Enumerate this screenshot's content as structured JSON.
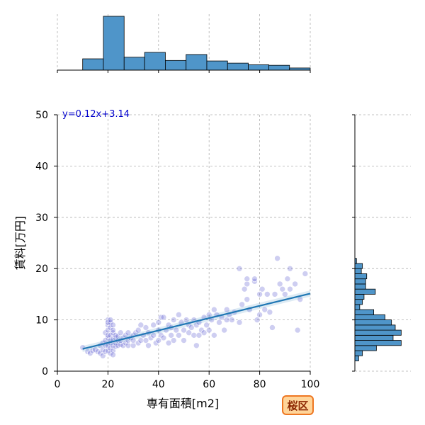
{
  "chart_data": {
    "type": "scatter",
    "xlabel": "専有面積[m2]",
    "ylabel": "賃料[万円]",
    "xlim": [
      0,
      100
    ],
    "ylim": [
      0,
      50
    ],
    "x_ticks": [
      0,
      20,
      40,
      60,
      80,
      100
    ],
    "y_ticks": [
      0,
      10,
      20,
      30,
      40,
      50
    ],
    "grid": true,
    "regression": {
      "slope": 0.12,
      "intercept": 3.14,
      "x_range": [
        10,
        100
      ],
      "label": "y=0.12x+3.14"
    },
    "badge": "桜区",
    "colors": {
      "points": "#5050cc",
      "line": "#1f77b4",
      "hist": "#4f95c9",
      "badge_fill": "#ffd59a",
      "badge_border": "#ee7722"
    },
    "points": [
      [
        10,
        4.6
      ],
      [
        12,
        3.8
      ],
      [
        13,
        3.5
      ],
      [
        14,
        4
      ],
      [
        15,
        4.2
      ],
      [
        16,
        3.8
      ],
      [
        17,
        3.5
      ],
      [
        17,
        5
      ],
      [
        18,
        4.2
      ],
      [
        18,
        5.5
      ],
      [
        18,
        3
      ],
      [
        19,
        3.8
      ],
      [
        19,
        5
      ],
      [
        19,
        6
      ],
      [
        19,
        7.5
      ],
      [
        20,
        4
      ],
      [
        20,
        5
      ],
      [
        20,
        6.5
      ],
      [
        20,
        7
      ],
      [
        20,
        8
      ],
      [
        20,
        9
      ],
      [
        20,
        10
      ],
      [
        20,
        9.5
      ],
      [
        21,
        3.5
      ],
      [
        21,
        4.5
      ],
      [
        21,
        5.5
      ],
      [
        21,
        6
      ],
      [
        21,
        7
      ],
      [
        21,
        8.5
      ],
      [
        21,
        9.5
      ],
      [
        21,
        10
      ],
      [
        22,
        4
      ],
      [
        22,
        5
      ],
      [
        22,
        6.2
      ],
      [
        22,
        7.5
      ],
      [
        22,
        8
      ],
      [
        22,
        9
      ],
      [
        22,
        3.2
      ],
      [
        23,
        4.8
      ],
      [
        23,
        5.5
      ],
      [
        23,
        6.5
      ],
      [
        23,
        7
      ],
      [
        24,
        5
      ],
      [
        24,
        6
      ],
      [
        24,
        6.8
      ],
      [
        25,
        5.2
      ],
      [
        25,
        6
      ],
      [
        25,
        7.5
      ],
      [
        26,
        5
      ],
      [
        26,
        6.5
      ],
      [
        27,
        5.5
      ],
      [
        27,
        7
      ],
      [
        28,
        5
      ],
      [
        28,
        6
      ],
      [
        28,
        7.5
      ],
      [
        29,
        6.5
      ],
      [
        30,
        5
      ],
      [
        30,
        6
      ],
      [
        30,
        7
      ],
      [
        31,
        7.5
      ],
      [
        32,
        5.5
      ],
      [
        32,
        8
      ],
      [
        33,
        6
      ],
      [
        33,
        9
      ],
      [
        34,
        7
      ],
      [
        35,
        6
      ],
      [
        35,
        8.5
      ],
      [
        36,
        7.5
      ],
      [
        36,
        5
      ],
      [
        37,
        6.5
      ],
      [
        38,
        7
      ],
      [
        38,
        9
      ],
      [
        39,
        5.5
      ],
      [
        40,
        6
      ],
      [
        40,
        8
      ],
      [
        40,
        9.5
      ],
      [
        41,
        7
      ],
      [
        41,
        10.5
      ],
      [
        42,
        6.5
      ],
      [
        42,
        10.5
      ],
      [
        43,
        8
      ],
      [
        44,
        5.5
      ],
      [
        44,
        9
      ],
      [
        45,
        7
      ],
      [
        45,
        8.5
      ],
      [
        46,
        10
      ],
      [
        46,
        6
      ],
      [
        47,
        8
      ],
      [
        48,
        7
      ],
      [
        48,
        11
      ],
      [
        49,
        9.5
      ],
      [
        50,
        8
      ],
      [
        50,
        6
      ],
      [
        51,
        10
      ],
      [
        52,
        7.5
      ],
      [
        52,
        9
      ],
      [
        53,
        8.5
      ],
      [
        54,
        7
      ],
      [
        54,
        10
      ],
      [
        55,
        5
      ],
      [
        55,
        9
      ],
      [
        56,
        9.5
      ],
      [
        56,
        7
      ],
      [
        57,
        8
      ],
      [
        58,
        10.5
      ],
      [
        58,
        7.5
      ],
      [
        59,
        9
      ],
      [
        60,
        8
      ],
      [
        60,
        11
      ],
      [
        61,
        10
      ],
      [
        62,
        12
      ],
      [
        62,
        7
      ],
      [
        63,
        11
      ],
      [
        64,
        9.5
      ],
      [
        65,
        10.5
      ],
      [
        66,
        8
      ],
      [
        67,
        10
      ],
      [
        67,
        12
      ],
      [
        68,
        11
      ],
      [
        69,
        10
      ],
      [
        70,
        11.5
      ],
      [
        72,
        9.5
      ],
      [
        72,
        20
      ],
      [
        73,
        13
      ],
      [
        74,
        16
      ],
      [
        75,
        17
      ],
      [
        75,
        18
      ],
      [
        75,
        14
      ],
      [
        76,
        12
      ],
      [
        78,
        17.5
      ],
      [
        78,
        18
      ],
      [
        79,
        10
      ],
      [
        80,
        15
      ],
      [
        80,
        11
      ],
      [
        81,
        16
      ],
      [
        82,
        12
      ],
      [
        83,
        15
      ],
      [
        84,
        11.5
      ],
      [
        85,
        8.5
      ],
      [
        86,
        15
      ],
      [
        87,
        22
      ],
      [
        88,
        17
      ],
      [
        89,
        16
      ],
      [
        90,
        15
      ],
      [
        91,
        18
      ],
      [
        92,
        20
      ],
      [
        92,
        16
      ],
      [
        94,
        17
      ],
      [
        95,
        8
      ],
      [
        96,
        14
      ],
      [
        98,
        19
      ]
    ],
    "top_histogram": {
      "bin_edges": [
        10,
        18.2,
        26.4,
        34.5,
        42.7,
        50.9,
        59.1,
        67.3,
        75.5,
        83.6,
        91.8,
        100
      ],
      "relative_heights": [
        0.21,
        1.0,
        0.24,
        0.33,
        0.18,
        0.29,
        0.17,
        0.13,
        0.1,
        0.09,
        0.04
      ]
    },
    "right_histogram": {
      "bin_edges": [
        2,
        3,
        4,
        5,
        6,
        7,
        8,
        9,
        10,
        11,
        12,
        13,
        14,
        15,
        16,
        17,
        18,
        19,
        20,
        21,
        22
      ],
      "relative_heights": [
        0.07,
        0.14,
        0.4,
        0.86,
        0.71,
        0.86,
        0.75,
        0.68,
        0.56,
        0.35,
        0.09,
        0.14,
        0.17,
        0.38,
        0.2,
        0.2,
        0.22,
        0.12,
        0.14,
        0.03
      ]
    }
  }
}
